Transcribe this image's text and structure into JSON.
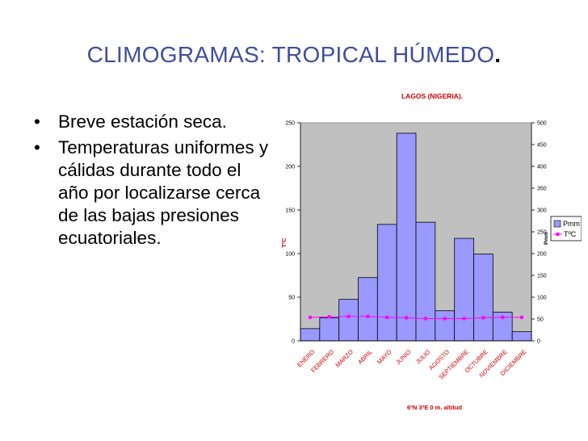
{
  "slide": {
    "title": "CLIMOGRAMAS: TROPICAL HÚMEDO",
    "title_dot": ".",
    "bullets": [
      "Breve estación seca.",
      "Temperaturas uniformes y cálidas durante todo el año por localizarse cerca de las bajas presiones ecuatoriales."
    ]
  },
  "chart_data": {
    "type": "bar",
    "title": "LAGOS (NIGERIA).",
    "subtitle": "6ºN  3ºE        0 m. altitud",
    "categories": [
      "ENERO",
      "FEBRERO",
      "MARZO",
      "ABRIL",
      "MAYO",
      "JUNIO",
      "JULIO",
      "AGOSTO",
      "SEPTIEMBRE",
      "OCTUBRE",
      "NOVIEMBRE",
      "DICIEMBRE"
    ],
    "series": [
      {
        "name": "Pmm",
        "kind": "bar",
        "axis": "right",
        "color": "#9999ff",
        "values": [
          28,
          53,
          95,
          145,
          267,
          476,
          272,
          69,
          235,
          199,
          66,
          21
        ]
      },
      {
        "name": "TºC",
        "kind": "line",
        "axis": "left",
        "color": "#ff00ff",
        "values": [
          27,
          27.5,
          28,
          28,
          27,
          26.5,
          25.5,
          25.5,
          25.5,
          26.5,
          27,
          27
        ]
      }
    ],
    "y_left": {
      "label": "TºC",
      "min": 0,
      "max": 250,
      "ticks": [
        0,
        50,
        100,
        150,
        200,
        250
      ]
    },
    "y_right": {
      "label": "Pmm",
      "min": 0,
      "max": 500,
      "ticks": [
        0,
        50,
        100,
        150,
        200,
        250,
        300,
        350,
        400,
        450,
        500
      ]
    },
    "grid": false,
    "legend_position": "right",
    "plot_background": "#c0c0c0"
  }
}
